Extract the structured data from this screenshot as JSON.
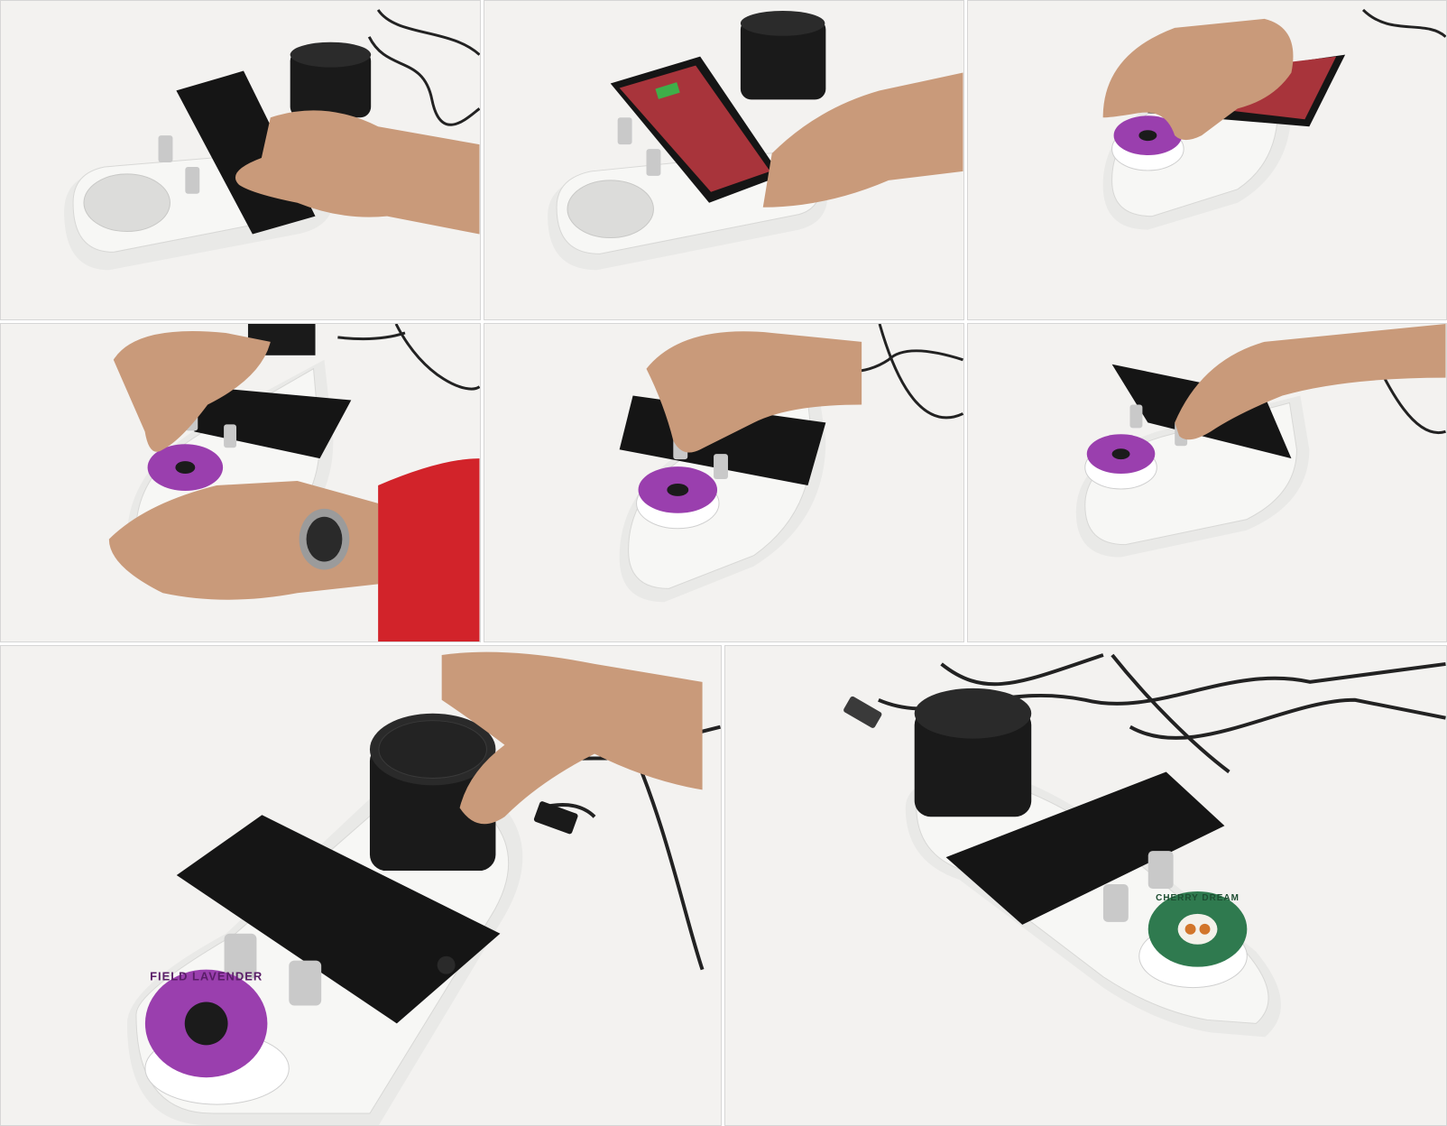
{
  "photos": [
    {
      "id": "photo-1",
      "description_name": "phone-placed-on-device"
    },
    {
      "id": "photo-2",
      "description_name": "phone-playing-video"
    },
    {
      "id": "photo-3",
      "description_name": "capsule-inserted-under-phone"
    },
    {
      "id": "photo-4",
      "description_name": "capsule-pressed-with-watch-hand"
    },
    {
      "id": "photo-5",
      "description_name": "knob-turned-with-capsule"
    },
    {
      "id": "photo-6",
      "description_name": "knob-pressed-with-capsule"
    },
    {
      "id": "photo-7",
      "description_name": "speaker-adjusted-closeup"
    },
    {
      "id": "photo-8",
      "description_name": "green-capsule-device-overview"
    }
  ],
  "capsule_purple": {
    "ring_text": "FIELD LAVENDER",
    "color": "#9a3fae",
    "center_color": "#1b1b1b"
  },
  "capsule_green": {
    "ring_text": "CHERRY DREAM",
    "color": "#2f7a4f",
    "center_color": "#f4f1ea"
  },
  "colors": {
    "device_white": "#f2f2f0",
    "phone_black": "#151515",
    "speaker_black": "#1a1a1a",
    "knob_silver": "#c9c9c9",
    "skin": "#c99a7a",
    "sleeve_red": "#d2232a",
    "video_red": "#a8343b"
  }
}
